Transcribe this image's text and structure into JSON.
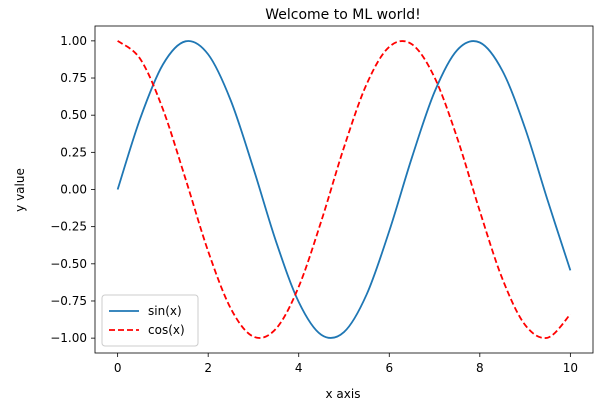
{
  "chart_data": {
    "type": "line",
    "title": "Welcome to ML world!",
    "xlabel": "x axis",
    "ylabel": "y value",
    "xlim": [
      -0.5,
      10.5
    ],
    "ylim": [
      -1.1,
      1.1
    ],
    "xticks": [
      0,
      2,
      4,
      6,
      8,
      10
    ],
    "xtick_labels": [
      "0",
      "2",
      "4",
      "6",
      "8",
      "10"
    ],
    "yticks": [
      1.0,
      0.75,
      0.5,
      0.25,
      0.0,
      -0.25,
      -0.5,
      -0.75,
      -1.0
    ],
    "ytick_labels": [
      "1.00",
      "0.75",
      "0.50",
      "0.25",
      "0.00",
      "−0.25",
      "−0.50",
      "−0.75",
      "−1.00"
    ],
    "grid": false,
    "legend_position": "lower-left",
    "series": [
      {
        "name": "sin(x)",
        "color": "#1f77b4",
        "style": "solid",
        "x": [
          0,
          0.5,
          1,
          1.5,
          2,
          2.5,
          3,
          3.5,
          4,
          4.5,
          5,
          5.5,
          6,
          6.5,
          7,
          7.5,
          8,
          8.5,
          9,
          9.5,
          10
        ],
        "y": [
          0,
          0.479,
          0.841,
          0.997,
          0.909,
          0.598,
          0.141,
          -0.351,
          -0.757,
          -0.978,
          -0.959,
          -0.706,
          -0.279,
          0.215,
          0.657,
          0.938,
          0.989,
          0.798,
          0.412,
          -0.075,
          -0.544
        ]
      },
      {
        "name": "cos(x)",
        "color": "#ff0000",
        "style": "dashed",
        "x": [
          0,
          0.5,
          1,
          1.5,
          2,
          2.5,
          3,
          3.5,
          4,
          4.5,
          5,
          5.5,
          6,
          6.5,
          7,
          7.5,
          8,
          8.5,
          9,
          9.5,
          10
        ],
        "y": [
          1,
          0.878,
          0.54,
          0.071,
          -0.416,
          -0.801,
          -0.99,
          -0.936,
          -0.654,
          -0.211,
          0.284,
          0.709,
          0.96,
          0.977,
          0.754,
          0.347,
          -0.146,
          -0.602,
          -0.911,
          -0.997,
          -0.839
        ]
      }
    ]
  }
}
